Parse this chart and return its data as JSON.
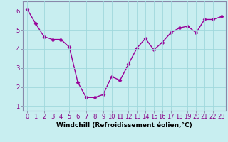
{
  "x": [
    0,
    1,
    2,
    3,
    4,
    5,
    6,
    7,
    8,
    9,
    10,
    11,
    12,
    13,
    14,
    15,
    16,
    17,
    18,
    19,
    20,
    21,
    22,
    23
  ],
  "y": [
    6.1,
    5.35,
    4.65,
    4.5,
    4.5,
    4.1,
    2.25,
    1.45,
    1.45,
    1.6,
    2.55,
    2.35,
    3.2,
    4.05,
    4.55,
    3.95,
    4.35,
    4.85,
    5.1,
    5.2,
    4.85,
    5.55,
    5.55,
    5.7
  ],
  "line_color": "#990099",
  "marker": "D",
  "marker_size": 2.5,
  "bg_color": "#c8eef0",
  "grid_color": "#a0d8dc",
  "xlabel": "Windchill (Refroidissement éolien,°C)",
  "ylabel": "",
  "xlim": [
    -0.5,
    23.5
  ],
  "ylim": [
    0.75,
    6.5
  ],
  "yticks": [
    1,
    2,
    3,
    4,
    5,
    6
  ],
  "xticks": [
    0,
    1,
    2,
    3,
    4,
    5,
    6,
    7,
    8,
    9,
    10,
    11,
    12,
    13,
    14,
    15,
    16,
    17,
    18,
    19,
    20,
    21,
    22,
    23
  ],
  "xlabel_fontsize": 6.5,
  "tick_fontsize": 6.0,
  "linewidth": 1.0,
  "spine_color": "#8888aa"
}
